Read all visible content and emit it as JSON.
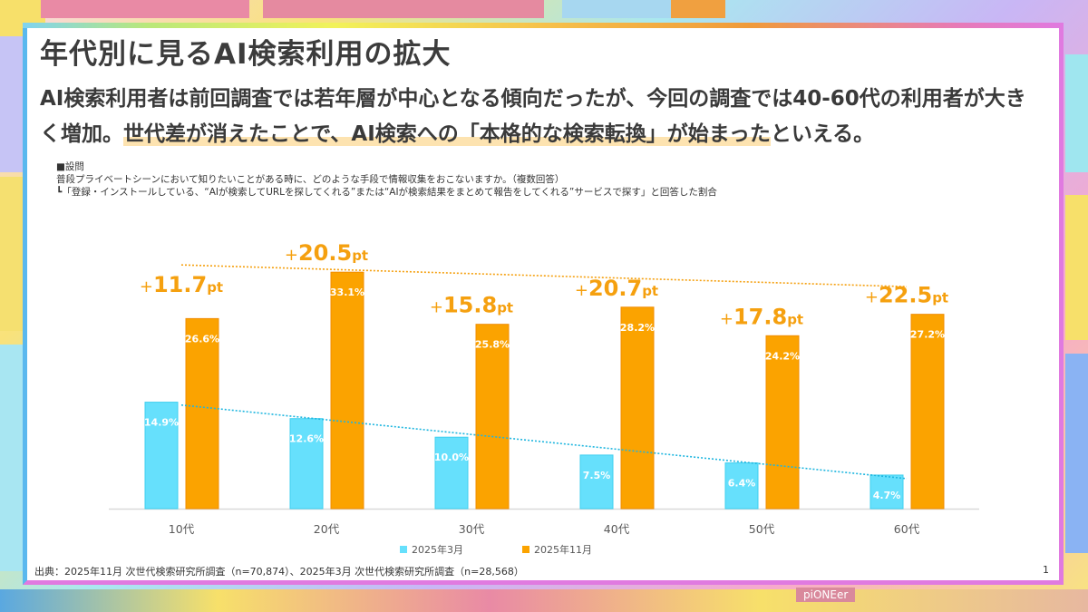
{
  "slide": {
    "title": "年代別に見るAI検索利用の拡大",
    "lead_part1": "AI検索利用者は前回調査では若年層が中心となる傾向だったが、今回の調査では40-60代の利用者が大きく増加。",
    "lead_highlight": "世代差が消えたことで、AI検索への「本格的な検索転換」が始まった",
    "lead_part2": "といえる。",
    "question_heading": "■設問",
    "question_text": "普段プライベートシーンにおいて知りたいことがある時に、どのような手段で情報収集をおこないますか。（複数回答）",
    "question_note": "┗「登録・インストールしている、“AIが検索してURLを探してくれる”または“AIが検索結果をまとめて報告をしてくれる”サービスで探す」と回答した割合",
    "source": "出典：2025年11月 次世代検索研究所調査（n=70,874）、2025年3月 次世代検索研究所調査（n=28,568）",
    "page_number": "1",
    "background_label": "piONEer"
  },
  "colors": {
    "series_march": "#66e0fc",
    "series_nov": "#fba300",
    "diff_label": "#f5a00f",
    "trend_march": "#1fb6df",
    "trend_nov": "#f5a00f"
  },
  "chart_data": {
    "type": "bar",
    "title": "",
    "xlabel": "",
    "ylabel": "",
    "ylim": [
      0,
      36
    ],
    "grid": false,
    "legend_position": "bottom",
    "categories": [
      "10代",
      "20代",
      "30代",
      "40代",
      "50代",
      "60代"
    ],
    "series": [
      {
        "name": "2025年3月",
        "values": [
          14.9,
          12.6,
          10.0,
          7.5,
          6.4,
          4.7
        ],
        "labels": [
          "14.9%",
          "12.6%",
          "10.0%",
          "7.5%",
          "6.4%",
          "4.7%"
        ],
        "trendline": "linear, dotted"
      },
      {
        "name": "2025年11月",
        "values": [
          26.6,
          33.1,
          25.8,
          28.2,
          24.2,
          27.2
        ],
        "labels": [
          "26.6%",
          "33.1%",
          "25.8%",
          "28.2%",
          "24.2%",
          "27.2%"
        ],
        "trendline": "linear, dotted"
      }
    ],
    "annotations": [
      {
        "category": "10代",
        "plus": "+",
        "value": "11.7",
        "unit": "pt"
      },
      {
        "category": "20代",
        "plus": "+",
        "value": "20.5",
        "unit": "pt"
      },
      {
        "category": "30代",
        "plus": "+",
        "value": "15.8",
        "unit": "pt"
      },
      {
        "category": "40代",
        "plus": "+",
        "value": "20.7",
        "unit": "pt"
      },
      {
        "category": "50代",
        "plus": "+",
        "value": "17.8",
        "unit": "pt"
      },
      {
        "category": "60代",
        "plus": "+",
        "value": "22.5",
        "unit": "pt"
      }
    ]
  }
}
